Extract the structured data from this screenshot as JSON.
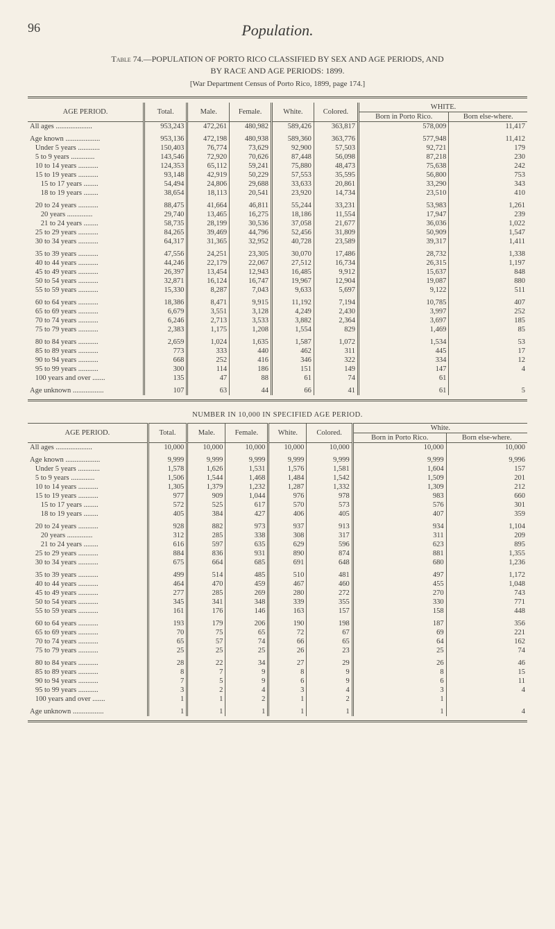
{
  "page_number": "96",
  "title_italic": "Population.",
  "caption_line1": "Table 74.—POPULATION OF PORTO RICO CLASSIFIED BY SEX AND AGE PERIODS, AND",
  "caption_line2": "BY RACE AND AGE PERIODS: 1899.",
  "note": "[War Department Census of Porto Rico, 1899, page 174.]",
  "headers": {
    "age_period": "AGE PERIOD.",
    "total": "Total.",
    "male": "Male.",
    "female": "Female.",
    "white": "White.",
    "colored": "Colored.",
    "white_group": "WHITE.",
    "born_pr": "Born in Porto Rico.",
    "born_else": "Born else-where."
  },
  "table1": {
    "all_ages": {
      "label": "All ages",
      "t": "953,243",
      "m": "472,261",
      "f": "480,982",
      "w": "589,426",
      "c": "363,817",
      "bpr": "578,009",
      "be": "11,417"
    },
    "rows": [
      [
        {
          "label": "Age known",
          "t": "953,136",
          "m": "472,198",
          "f": "480,938",
          "w": "589,360",
          "c": "363,776",
          "bpr": "577,948",
          "be": "11,412"
        },
        {
          "label": "Under 5 years",
          "t": "150,403",
          "m": "76,774",
          "f": "73,629",
          "w": "92,900",
          "c": "57,503",
          "bpr": "92,721",
          "be": "179"
        },
        {
          "label": "5 to 9 years",
          "t": "143,546",
          "m": "72,920",
          "f": "70,626",
          "w": "87,448",
          "c": "56,098",
          "bpr": "87,218",
          "be": "230"
        },
        {
          "label": "10 to 14 years",
          "t": "124,353",
          "m": "65,112",
          "f": "59,241",
          "w": "75,880",
          "c": "48,473",
          "bpr": "75,638",
          "be": "242"
        },
        {
          "label": "15 to 19 years",
          "t": "93,148",
          "m": "42,919",
          "f": "50,229",
          "w": "57,553",
          "c": "35,595",
          "bpr": "56,800",
          "be": "753"
        },
        {
          "label": "15 to 17 years",
          "t": "54,494",
          "m": "24,806",
          "f": "29,688",
          "w": "33,633",
          "c": "20,861",
          "bpr": "33,290",
          "be": "343"
        },
        {
          "label": "18 to 19 years",
          "t": "38,654",
          "m": "18,113",
          "f": "20,541",
          "w": "23,920",
          "c": "14,734",
          "bpr": "23,510",
          "be": "410"
        }
      ],
      [
        {
          "label": "20 to 24 years",
          "t": "88,475",
          "m": "41,664",
          "f": "46,811",
          "w": "55,244",
          "c": "33,231",
          "bpr": "53,983",
          "be": "1,261"
        },
        {
          "label": "20 years",
          "t": "29,740",
          "m": "13,465",
          "f": "16,275",
          "w": "18,186",
          "c": "11,554",
          "bpr": "17,947",
          "be": "239"
        },
        {
          "label": "21 to 24 years",
          "t": "58,735",
          "m": "28,199",
          "f": "30,536",
          "w": "37,058",
          "c": "21,677",
          "bpr": "36,036",
          "be": "1,022"
        },
        {
          "label": "25 to 29 years",
          "t": "84,265",
          "m": "39,469",
          "f": "44,796",
          "w": "52,456",
          "c": "31,809",
          "bpr": "50,909",
          "be": "1,547"
        },
        {
          "label": "30 to 34 years",
          "t": "64,317",
          "m": "31,365",
          "f": "32,952",
          "w": "40,728",
          "c": "23,589",
          "bpr": "39,317",
          "be": "1,411"
        }
      ],
      [
        {
          "label": "35 to 39 years",
          "t": "47,556",
          "m": "24,251",
          "f": "23,305",
          "w": "30,070",
          "c": "17,486",
          "bpr": "28,732",
          "be": "1,338"
        },
        {
          "label": "40 to 44 years",
          "t": "44,246",
          "m": "22,179",
          "f": "22,067",
          "w": "27,512",
          "c": "16,734",
          "bpr": "26,315",
          "be": "1,197"
        },
        {
          "label": "45 to 49 years",
          "t": "26,397",
          "m": "13,454",
          "f": "12,943",
          "w": "16,485",
          "c": "9,912",
          "bpr": "15,637",
          "be": "848"
        },
        {
          "label": "50 to 54 years",
          "t": "32,871",
          "m": "16,124",
          "f": "16,747",
          "w": "19,967",
          "c": "12,904",
          "bpr": "19,087",
          "be": "880"
        },
        {
          "label": "55 to 59 years",
          "t": "15,330",
          "m": "8,287",
          "f": "7,043",
          "w": "9,633",
          "c": "5,697",
          "bpr": "9,122",
          "be": "511"
        }
      ],
      [
        {
          "label": "60 to 64 years",
          "t": "18,386",
          "m": "8,471",
          "f": "9,915",
          "w": "11,192",
          "c": "7,194",
          "bpr": "10,785",
          "be": "407"
        },
        {
          "label": "65 to 69 years",
          "t": "6,679",
          "m": "3,551",
          "f": "3,128",
          "w": "4,249",
          "c": "2,430",
          "bpr": "3,997",
          "be": "252"
        },
        {
          "label": "70 to 74 years",
          "t": "6,246",
          "m": "2,713",
          "f": "3,533",
          "w": "3,882",
          "c": "2,364",
          "bpr": "3,697",
          "be": "185"
        },
        {
          "label": "75 to 79 years",
          "t": "2,383",
          "m": "1,175",
          "f": "1,208",
          "w": "1,554",
          "c": "829",
          "bpr": "1,469",
          "be": "85"
        }
      ],
      [
        {
          "label": "80 to 84 years",
          "t": "2,659",
          "m": "1,024",
          "f": "1,635",
          "w": "1,587",
          "c": "1,072",
          "bpr": "1,534",
          "be": "53"
        },
        {
          "label": "85 to 89 years",
          "t": "773",
          "m": "333",
          "f": "440",
          "w": "462",
          "c": "311",
          "bpr": "445",
          "be": "17"
        },
        {
          "label": "90 to 94 years",
          "t": "668",
          "m": "252",
          "f": "416",
          "w": "346",
          "c": "322",
          "bpr": "334",
          "be": "12"
        },
        {
          "label": "95 to 99 years",
          "t": "300",
          "m": "114",
          "f": "186",
          "w": "151",
          "c": "149",
          "bpr": "147",
          "be": "4"
        },
        {
          "label": "100 years and over",
          "t": "135",
          "m": "47",
          "f": "88",
          "w": "61",
          "c": "74",
          "bpr": "61",
          "be": ""
        }
      ],
      [
        {
          "label": "Age unknown",
          "t": "107",
          "m": "63",
          "f": "44",
          "w": "66",
          "c": "41",
          "bpr": "61",
          "be": "5"
        }
      ]
    ]
  },
  "section2_title": "NUMBER IN 10,000 IN SPECIFIED AGE PERIOD.",
  "headers2": {
    "white_group": "White.",
    "born_pr": "Born in Porto Rico.",
    "born_else": "Born else-where."
  },
  "table2": {
    "all_ages": {
      "label": "All ages",
      "t": "10,000",
      "m": "10,000",
      "f": "10,000",
      "w": "10,000",
      "c": "10,000",
      "bpr": "10,000",
      "be": "10,000"
    },
    "rows": [
      [
        {
          "label": "Age known",
          "t": "9,999",
          "m": "9,999",
          "f": "9,999",
          "w": "9,999",
          "c": "9,999",
          "bpr": "9,999",
          "be": "9,996"
        },
        {
          "label": "Under 5 years",
          "t": "1,578",
          "m": "1,626",
          "f": "1,531",
          "w": "1,576",
          "c": "1,581",
          "bpr": "1,604",
          "be": "157"
        },
        {
          "label": "5 to 9 years",
          "t": "1,506",
          "m": "1,544",
          "f": "1,468",
          "w": "1,484",
          "c": "1,542",
          "bpr": "1,509",
          "be": "201"
        },
        {
          "label": "10 to 14 years",
          "t": "1,305",
          "m": "1,379",
          "f": "1,232",
          "w": "1,287",
          "c": "1,332",
          "bpr": "1,309",
          "be": "212"
        },
        {
          "label": "15 to 19 years",
          "t": "977",
          "m": "909",
          "f": "1,044",
          "w": "976",
          "c": "978",
          "bpr": "983",
          "be": "660"
        },
        {
          "label": "15 to 17 years",
          "t": "572",
          "m": "525",
          "f": "617",
          "w": "570",
          "c": "573",
          "bpr": "576",
          "be": "301"
        },
        {
          "label": "18 to 19 years",
          "t": "405",
          "m": "384",
          "f": "427",
          "w": "406",
          "c": "405",
          "bpr": "407",
          "be": "359"
        }
      ],
      [
        {
          "label": "20 to 24 years",
          "t": "928",
          "m": "882",
          "f": "973",
          "w": "937",
          "c": "913",
          "bpr": "934",
          "be": "1,104"
        },
        {
          "label": "20 years",
          "t": "312",
          "m": "285",
          "f": "338",
          "w": "308",
          "c": "317",
          "bpr": "311",
          "be": "209"
        },
        {
          "label": "21 to 24 years",
          "t": "616",
          "m": "597",
          "f": "635",
          "w": "629",
          "c": "596",
          "bpr": "623",
          "be": "895"
        },
        {
          "label": "25 to 29 years",
          "t": "884",
          "m": "836",
          "f": "931",
          "w": "890",
          "c": "874",
          "bpr": "881",
          "be": "1,355"
        },
        {
          "label": "30 to 34 years",
          "t": "675",
          "m": "664",
          "f": "685",
          "w": "691",
          "c": "648",
          "bpr": "680",
          "be": "1,236"
        }
      ],
      [
        {
          "label": "35 to 39 years",
          "t": "499",
          "m": "514",
          "f": "485",
          "w": "510",
          "c": "481",
          "bpr": "497",
          "be": "1,172"
        },
        {
          "label": "40 to 44 years",
          "t": "464",
          "m": "470",
          "f": "459",
          "w": "467",
          "c": "460",
          "bpr": "455",
          "be": "1,048"
        },
        {
          "label": "45 to 49 years",
          "t": "277",
          "m": "285",
          "f": "269",
          "w": "280",
          "c": "272",
          "bpr": "270",
          "be": "743"
        },
        {
          "label": "50 to 54 years",
          "t": "345",
          "m": "341",
          "f": "348",
          "w": "339",
          "c": "355",
          "bpr": "330",
          "be": "771"
        },
        {
          "label": "55 to 59 years",
          "t": "161",
          "m": "176",
          "f": "146",
          "w": "163",
          "c": "157",
          "bpr": "158",
          "be": "448"
        }
      ],
      [
        {
          "label": "60 to 64 years",
          "t": "193",
          "m": "179",
          "f": "206",
          "w": "190",
          "c": "198",
          "bpr": "187",
          "be": "356"
        },
        {
          "label": "65 to 69 years",
          "t": "70",
          "m": "75",
          "f": "65",
          "w": "72",
          "c": "67",
          "bpr": "69",
          "be": "221"
        },
        {
          "label": "70 to 74 years",
          "t": "65",
          "m": "57",
          "f": "74",
          "w": "66",
          "c": "65",
          "bpr": "64",
          "be": "162"
        },
        {
          "label": "75 to 79 years",
          "t": "25",
          "m": "25",
          "f": "25",
          "w": "26",
          "c": "23",
          "bpr": "25",
          "be": "74"
        }
      ],
      [
        {
          "label": "80 to 84 years",
          "t": "28",
          "m": "22",
          "f": "34",
          "w": "27",
          "c": "29",
          "bpr": "26",
          "be": "46"
        },
        {
          "label": "85 to 89 years",
          "t": "8",
          "m": "7",
          "f": "9",
          "w": "8",
          "c": "9",
          "bpr": "8",
          "be": "15"
        },
        {
          "label": "90 to 94 years",
          "t": "7",
          "m": "5",
          "f": "9",
          "w": "6",
          "c": "9",
          "bpr": "6",
          "be": "11"
        },
        {
          "label": "95 to 99 years",
          "t": "3",
          "m": "2",
          "f": "4",
          "w": "3",
          "c": "4",
          "bpr": "3",
          "be": "4"
        },
        {
          "label": "100 years and over",
          "t": "1",
          "m": "1",
          "f": "2",
          "w": "1",
          "c": "2",
          "bpr": "1",
          "be": ""
        }
      ],
      [
        {
          "label": "Age unknown",
          "t": "1",
          "m": "1",
          "f": "1",
          "w": "1",
          "c": "1",
          "bpr": "1",
          "be": "4"
        }
      ]
    ]
  },
  "indent": {
    "Under 5 years": 1,
    "5 to 9 years": 1,
    "10 to 14 years": 1,
    "15 to 19 years": 1,
    "15 to 17 years": 2,
    "18 to 19 years": 2,
    "20 to 24 years": 1,
    "20 years": 2,
    "21 to 24 years": 2,
    "25 to 29 years": 1,
    "30 to 34 years": 1,
    "35 to 39 years": 1,
    "40 to 44 years": 1,
    "45 to 49 years": 1,
    "50 to 54 years": 1,
    "55 to 59 years": 1,
    "60 to 64 years": 1,
    "65 to 69 years": 1,
    "70 to 74 years": 1,
    "75 to 79 years": 1,
    "80 to 84 years": 1,
    "85 to 89 years": 1,
    "90 to 94 years": 1,
    "95 to 99 years": 1,
    "100 years and over": 1
  }
}
